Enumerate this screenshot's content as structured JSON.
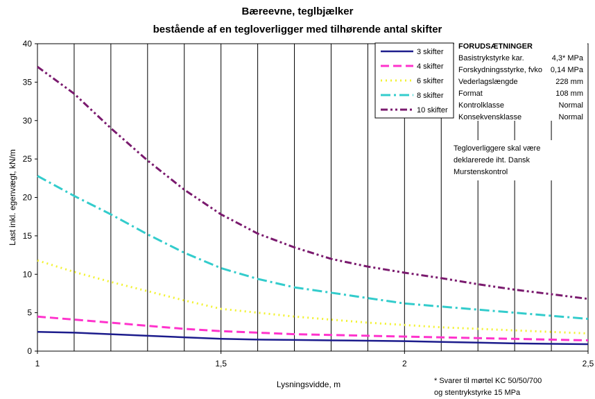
{
  "chart_data": {
    "type": "line",
    "title": "Bæreevne, teglbjælker",
    "subtitle": "bestående af en tegloverligger med tilhørende antal skifter",
    "xlabel": "Lysningsvidde, m",
    "ylabel": "Last inkl. egenvægt, kN/m",
    "xlim": [
      1,
      2.5
    ],
    "ylim": [
      0,
      40
    ],
    "xticks": [
      "1",
      "1,5",
      "2",
      "2,5"
    ],
    "yticks": [
      "0",
      "5",
      "10",
      "15",
      "20",
      "25",
      "30",
      "35",
      "40"
    ],
    "grid": "vertical",
    "legend": "top-right",
    "x": [
      1.0,
      1.1,
      1.2,
      1.3,
      1.4,
      1.5,
      1.6,
      1.7,
      1.8,
      1.9,
      2.0,
      2.1,
      2.2,
      2.3,
      2.4,
      2.5
    ],
    "series": [
      {
        "name": "3 skifter",
        "color": "#1c1c8c",
        "dash": "solid",
        "values": [
          2.5,
          2.4,
          2.2,
          2.0,
          1.8,
          1.6,
          1.5,
          1.45,
          1.4,
          1.35,
          1.3,
          1.2,
          1.1,
          1.0,
          0.95,
          0.9
        ]
      },
      {
        "name": "4 skifter",
        "color": "#ff33cc",
        "dash": "long",
        "values": [
          4.5,
          4.1,
          3.7,
          3.3,
          2.9,
          2.6,
          2.4,
          2.2,
          2.1,
          2.0,
          1.9,
          1.8,
          1.7,
          1.6,
          1.5,
          1.4
        ]
      },
      {
        "name": "6 skifter",
        "color": "#f2f233",
        "dash": "dot",
        "values": [
          11.8,
          10.3,
          9.0,
          7.8,
          6.6,
          5.5,
          5.0,
          4.5,
          4.1,
          3.7,
          3.4,
          3.1,
          2.9,
          2.7,
          2.5,
          2.3
        ]
      },
      {
        "name": "8 skifter",
        "color": "#33cccc",
        "dash": "dashdot",
        "values": [
          22.8,
          20.2,
          17.8,
          15.2,
          12.8,
          10.8,
          9.4,
          8.3,
          7.6,
          6.9,
          6.2,
          5.8,
          5.4,
          5.0,
          4.6,
          4.2
        ]
      },
      {
        "name": "10 skifter",
        "color": "#7a1a6e",
        "dash": "dashdotdot",
        "values": [
          37.0,
          33.5,
          29.0,
          24.8,
          21.0,
          17.8,
          15.3,
          13.5,
          12.0,
          11.0,
          10.2,
          9.5,
          8.7,
          8.0,
          7.4,
          6.8
        ]
      }
    ]
  },
  "info_box": {
    "heading": "FORUDSÆTNINGER",
    "rows": [
      {
        "label": "Basistrykstyrke kar.",
        "value": "4,3* MPa"
      },
      {
        "label": "Forskydningsstyrke, fvko",
        "value": "0,14 MPa"
      },
      {
        "label": "Vederlagslængde",
        "value": "228 mm"
      },
      {
        "label": "Format",
        "value": "108 mm"
      },
      {
        "label": "Kontrolklasse",
        "value": "Normal"
      },
      {
        "label": "Konsekvensklasse",
        "value": "Normal"
      }
    ]
  },
  "note_right": [
    "Tegloverliggere skal være",
    "deklarerede iht. Dansk",
    "Murstenskontrol"
  ],
  "footnote": [
    "* Svarer til mørtel KC 50/50/700",
    "og stentrykstyrke 15 MPa"
  ]
}
